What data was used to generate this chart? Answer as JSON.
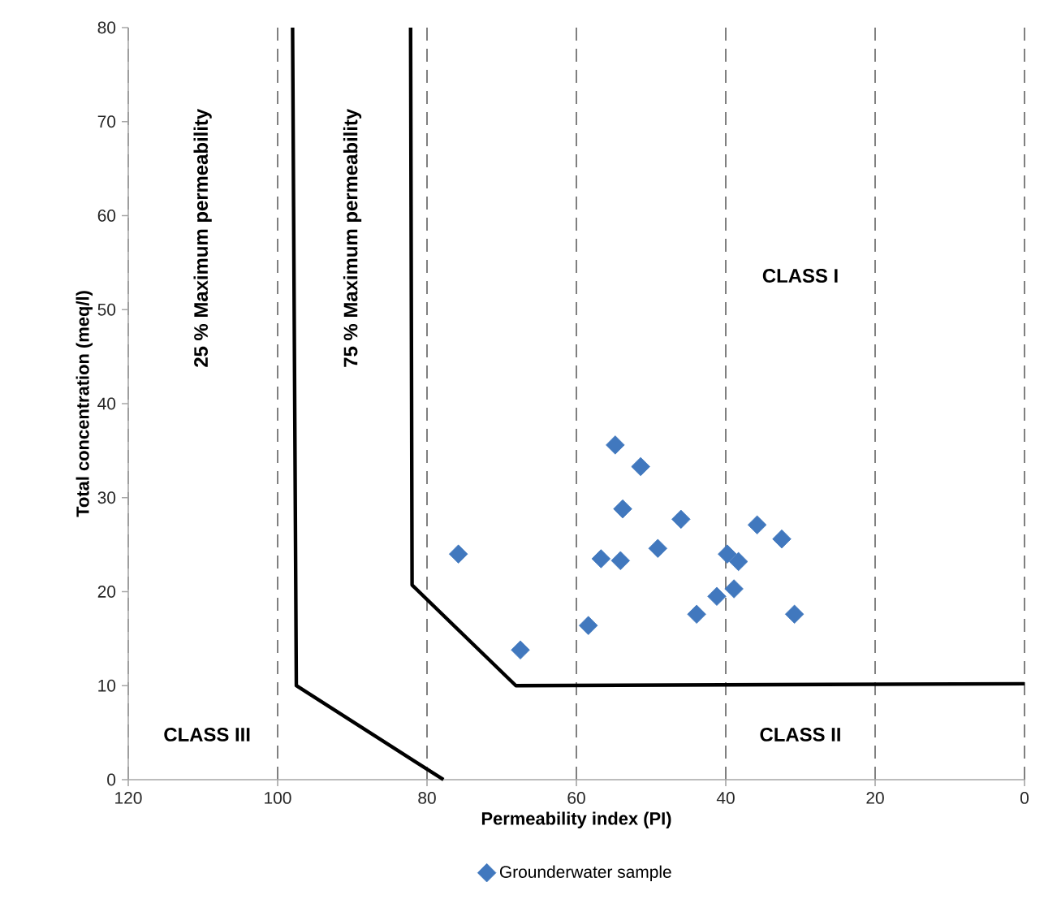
{
  "chart_data": {
    "type": "scatter",
    "xlabel": "Permeability index (PI)",
    "ylabel": "Total concentration  (meq/l)",
    "xlim": [
      120,
      0
    ],
    "ylim": [
      0,
      80
    ],
    "xticks": [
      120,
      100,
      80,
      60,
      40,
      20,
      0
    ],
    "yticks": [
      0,
      10,
      20,
      30,
      40,
      50,
      60,
      70,
      80
    ],
    "grid": "x",
    "legend": "bottom",
    "marker": "diamond",
    "series": [
      {
        "name": "Grounderwater sample",
        "color": "#4178be",
        "x": [
          75.8,
          67.5,
          58.4,
          56.7,
          54.1,
          54.8,
          51.4,
          53.8,
          49.1,
          46.0,
          43.9,
          41.2,
          39.8,
          38.3,
          38.9,
          35.8,
          32.5,
          30.8
        ],
        "values": [
          24.0,
          13.8,
          16.4,
          23.5,
          23.3,
          35.6,
          33.3,
          28.8,
          24.6,
          27.7,
          17.6,
          19.5,
          24.0,
          23.2,
          20.3,
          27.1,
          25.6,
          17.6
        ]
      },
      {
        "type": "line",
        "color": "#000000",
        "marker": "none",
        "x": [
          98.0,
          97.5,
          77.8
        ],
        "values": [
          80,
          10,
          0
        ]
      },
      {
        "type": "line",
        "color": "#000000",
        "marker": "none",
        "x": [
          82.2,
          82.0,
          68.1,
          0
        ],
        "values": [
          80,
          20.7,
          10,
          10.2
        ]
      }
    ],
    "annotations": [
      "25 % Maximum permeability",
      "75 % Maximum permeability",
      "CLASS I",
      "CLASS II",
      "CLASS III"
    ]
  }
}
